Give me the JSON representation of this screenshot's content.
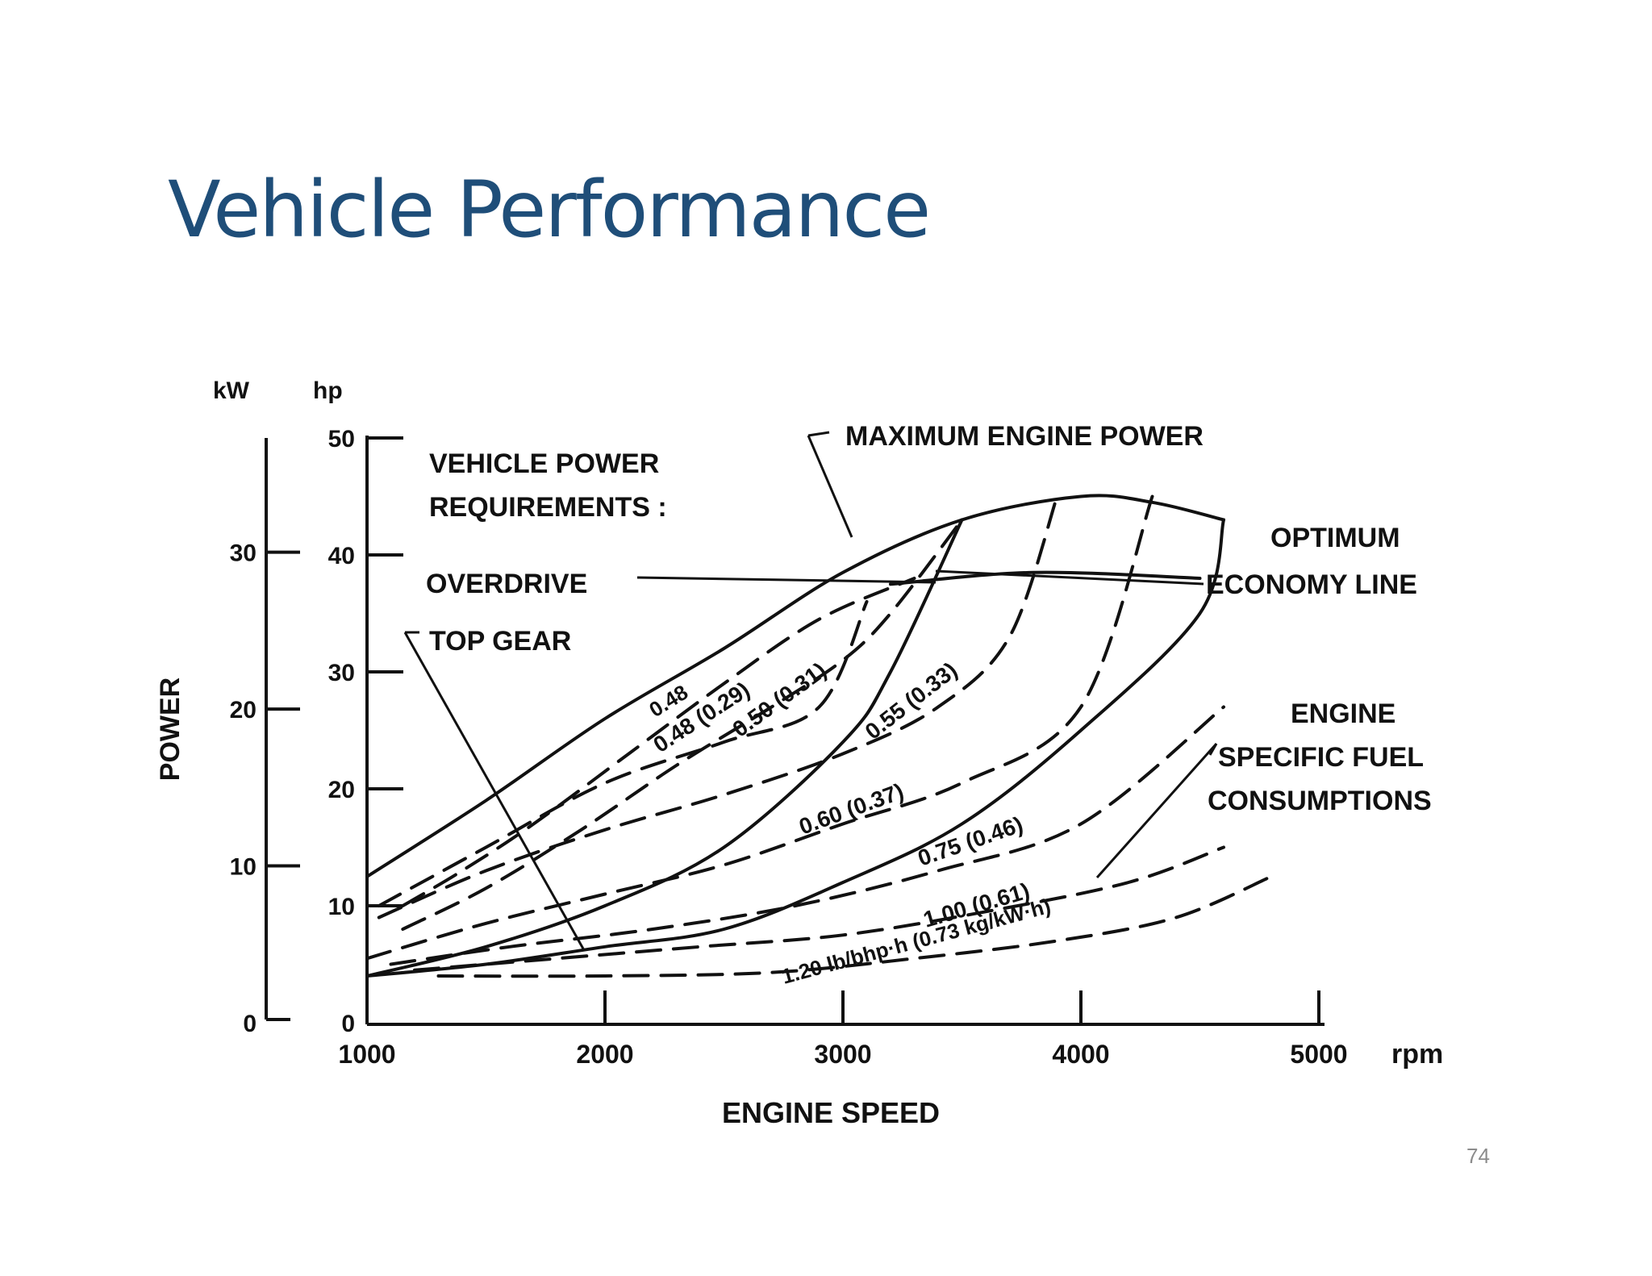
{
  "slide": {
    "title": "Vehicle Performance",
    "page_number": "74"
  },
  "chart_data": {
    "type": "line",
    "title": "",
    "xlabel": "ENGINE SPEED",
    "x_unit": "rpm",
    "xlim": [
      1000,
      5000
    ],
    "x_ticks": [
      "1000",
      "2000",
      "3000",
      "4000",
      "5000"
    ],
    "ylabel": "POWER",
    "ylim": [
      0,
      50
    ],
    "y_unit_hp": "hp",
    "y_ticks_hp": [
      "0",
      "10",
      "20",
      "30",
      "40",
      "50"
    ],
    "y_unit_kw": "kW",
    "y_ticks_kw": [
      "0",
      "10",
      "20",
      "30"
    ],
    "grid": false,
    "legend": "none",
    "series": [
      {
        "name": "MAXIMUM ENGINE POWER",
        "style": "solid",
        "x": [
          1000,
          1500,
          2000,
          2500,
          3000,
          3500,
          4000,
          4300,
          4600
        ],
        "y": [
          12.5,
          19,
          26,
          32,
          38.5,
          43,
          45,
          44.5,
          43
        ]
      },
      {
        "name": "OVERDRIVE",
        "style": "solid",
        "x": [
          1000,
          1500,
          2000,
          2500,
          3000,
          3500,
          4000,
          4500,
          4600
        ],
        "y": [
          4,
          5,
          6.5,
          8,
          12,
          17,
          25,
          35,
          43
        ]
      },
      {
        "name": "TOP GEAR",
        "style": "solid",
        "x": [
          1000,
          1500,
          2000,
          2500,
          3000,
          3200,
          3500
        ],
        "y": [
          4,
          6.5,
          10,
          15,
          24,
          30,
          43
        ]
      },
      {
        "name": "OPTIMUM ECONOMY LINE",
        "style": "solid",
        "x": [
          3200,
          3800,
          4500
        ],
        "y": [
          37.5,
          38.5,
          38
        ]
      }
    ],
    "contours": [
      {
        "label": "0.48",
        "style": "dashed",
        "x": [
          1150,
          1400,
          1700,
          2100,
          2500,
          2900,
          3300
        ],
        "y": [
          10,
          13,
          17,
          23,
          29,
          34.5,
          38
        ]
      },
      {
        "label": "0.48 (0.29)",
        "style": "dashed",
        "x": [
          1150,
          1500,
          1900,
          2300,
          2700,
          3000,
          3200,
          3500
        ],
        "y": [
          8,
          11.5,
          16.5,
          22,
          27,
          31,
          35,
          43
        ]
      },
      {
        "label": "0.50 (0.31)",
        "style": "dashed",
        "x": [
          1050,
          1500,
          2000,
          2500,
          2900,
          3100
        ],
        "y": [
          10,
          15,
          20.5,
          24,
          27,
          36
        ]
      },
      {
        "label": "0.55 (0.33)",
        "style": "dashed",
        "x": [
          1050,
          1500,
          2000,
          2500,
          3000,
          3400,
          3700,
          3900
        ],
        "y": [
          9,
          13,
          16.5,
          19.5,
          23,
          27,
          33,
          45
        ]
      },
      {
        "label": "0.60 (0.37)",
        "style": "dashed",
        "x": [
          1000,
          1500,
          2000,
          2500,
          3000,
          3500,
          4000,
          4300
        ],
        "y": [
          5.5,
          8.5,
          11,
          13.5,
          17,
          20.5,
          27,
          45
        ]
      },
      {
        "label": "0.75 (0.46)",
        "style": "dashed",
        "x": [
          1100,
          1600,
          2200,
          2800,
          3400,
          4000,
          4600
        ],
        "y": [
          5,
          6.5,
          8,
          10,
          13,
          17,
          27
        ]
      },
      {
        "label": "1.00 (0.61)",
        "style": "dashed",
        "x": [
          1200,
          1800,
          2400,
          3000,
          3600,
          4200,
          4600
        ],
        "y": [
          4.5,
          5.5,
          6.5,
          7.5,
          9.5,
          12,
          15
        ]
      },
      {
        "label": "1.20",
        "style": "dashed",
        "x": [
          1300,
          2000,
          2700,
          3300,
          3900,
          4400,
          4800
        ],
        "y": [
          4,
          4,
          4.3,
          5.5,
          7,
          9,
          12.5
        ]
      }
    ],
    "annotations": {
      "vehicle_power_1": "VEHICLE POWER",
      "vehicle_power_2": "REQUIREMENTS :",
      "overdrive": "OVERDRIVE",
      "top_gear": "TOP GEAR",
      "max_engine_power": "MAXIMUM ENGINE POWER",
      "optimum_1": "OPTIMUM",
      "optimum_2": "ECONOMY LINE",
      "sfc_1": "ENGINE",
      "sfc_2": "SPECIFIC FUEL",
      "sfc_3": "CONSUMPTIONS",
      "lbl_048a": "0.48",
      "lbl_048": "0.48 (0.29)",
      "lbl_050": "0.50 (0.31)",
      "lbl_055": "0.55 (0.33)",
      "lbl_060": "0.60 (0.37)",
      "lbl_075": "0.75 (0.46)",
      "lbl_100": "1.00 (0.61)",
      "lbl_120": "1.20 lb/bhp·h (0.73 kg/kW·h)"
    }
  }
}
